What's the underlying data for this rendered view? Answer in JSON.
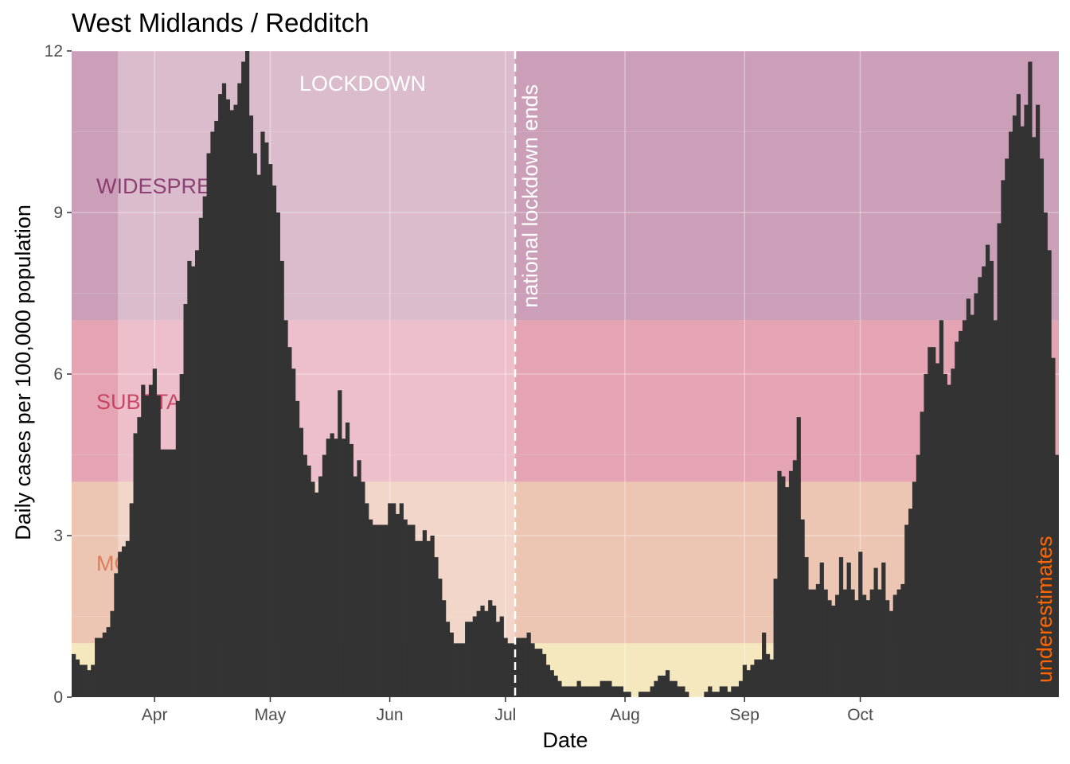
{
  "chart_data": {
    "type": "bar",
    "title": "West Midlands / Redditch",
    "xlabel": "Date",
    "ylabel": "Daily cases per 100,000 population",
    "ylim": [
      0,
      12
    ],
    "y_ticks": [
      0,
      3,
      6,
      9,
      12
    ],
    "x_tick_labels": [
      "Apr",
      "May",
      "Jun",
      "Jul",
      "Aug",
      "Sep",
      "Oct"
    ],
    "x_tick_dates": [
      "2020-04-01",
      "2020-05-01",
      "2020-06-01",
      "2020-07-01",
      "2020-08-01",
      "2020-09-01",
      "2020-10-01"
    ],
    "start_date": "2020-03-11",
    "grid": true,
    "bands": [
      {
        "label": "WIDESPREAD",
        "from": 7,
        "to": 12,
        "color": "#a0507e"
      },
      {
        "label": "SUBSTANTIAL",
        "from": 4,
        "to": 7,
        "color": "#d05a74"
      },
      {
        "label": "MODERATE",
        "from": 1,
        "to": 4,
        "color": "#dc9575"
      },
      {
        "label": "",
        "from": 0,
        "to": 1,
        "color": "#ecd688"
      }
    ],
    "band_label_colors": [
      "#7a1f5c",
      "#c0294f",
      "#d86a40"
    ],
    "lockdown": {
      "label": "LOCKDOWN",
      "from": "2020-03-23",
      "to": "2020-07-04",
      "color": "#ffffff"
    },
    "annotations": [
      {
        "text": "national lockdown ends",
        "date": "2020-07-04",
        "color": "#ffffff"
      },
      {
        "text": "underestimates",
        "color": "#ff6600"
      }
    ],
    "bar_color": "#333333",
    "values": [
      0.8,
      0.7,
      0.6,
      0.6,
      0.5,
      0.6,
      1.1,
      1.1,
      1.2,
      1.3,
      1.6,
      2.3,
      2.7,
      2.8,
      2.9,
      3.6,
      4.9,
      5.2,
      5.8,
      5.6,
      5.8,
      6.1,
      5.6,
      4.6,
      4.6,
      4.6,
      4.6,
      5.5,
      6.0,
      7.3,
      8.1,
      8.0,
      8.3,
      8.9,
      9.3,
      10.1,
      10.5,
      10.7,
      11.2,
      11.4,
      11.1,
      10.9,
      11.0,
      11.4,
      11.8,
      12.1,
      10.8,
      10.1,
      9.7,
      10.5,
      10.3,
      9.9,
      9.5,
      9.0,
      8.1,
      7.0,
      6.5,
      6.1,
      5.5,
      5.0,
      4.5,
      4.3,
      4.0,
      3.8,
      4.1,
      4.5,
      4.8,
      4.9,
      4.8,
      5.7,
      4.8,
      5.1,
      4.7,
      4.1,
      4.4,
      4.0,
      3.6,
      3.3,
      3.2,
      3.2,
      3.2,
      3.2,
      3.6,
      3.6,
      3.4,
      3.6,
      3.3,
      3.2,
      3.2,
      2.9,
      2.9,
      3.1,
      2.9,
      3.0,
      2.6,
      2.2,
      1.8,
      1.4,
      1.2,
      1.0,
      1.0,
      1.0,
      1.4,
      1.4,
      1.5,
      1.6,
      1.7,
      1.6,
      1.8,
      1.7,
      1.4,
      1.5,
      1.1,
      1.0,
      1.0,
      1.1,
      1.1,
      1.1,
      1.2,
      1.0,
      0.9,
      0.9,
      0.8,
      0.6,
      0.5,
      0.4,
      0.3,
      0.2,
      0.2,
      0.2,
      0.2,
      0.3,
      0.2,
      0.2,
      0.2,
      0.2,
      0.2,
      0.3,
      0.3,
      0.3,
      0.2,
      0.2,
      0.2,
      0.1,
      0.1,
      0.0,
      0.0,
      0.1,
      0.1,
      0.1,
      0.2,
      0.3,
      0.4,
      0.4,
      0.5,
      0.3,
      0.3,
      0.2,
      0.2,
      0.1,
      0.0,
      0.0,
      0.0,
      0.0,
      0.1,
      0.2,
      0.1,
      0.1,
      0.2,
      0.2,
      0.1,
      0.2,
      0.2,
      0.3,
      0.6,
      0.5,
      0.6,
      0.7,
      0.7,
      1.2,
      0.8,
      0.7,
      2.2,
      4.2,
      4.1,
      3.9,
      4.2,
      4.4,
      5.2,
      3.3,
      2.6,
      2.0,
      2.0,
      2.1,
      2.5,
      2.0,
      1.8,
      1.7,
      1.9,
      2.6,
      2.0,
      2.5,
      2.0,
      1.8,
      2.7,
      1.9,
      1.8,
      2.0,
      2.4,
      2.0,
      2.5,
      1.8,
      1.6,
      1.9,
      2.0,
      2.1,
      3.2,
      3.5,
      4.0,
      4.5,
      5.3,
      6.0,
      6.5,
      6.5,
      6.2,
      7.0,
      6.0,
      5.8,
      6.1,
      6.6,
      6.8,
      7.0,
      7.4,
      7.1,
      7.5,
      7.8,
      8.0,
      8.4,
      8.1,
      7.0,
      8.8,
      9.6,
      10.0,
      10.5,
      10.8,
      11.2,
      10.6,
      11.0,
      11.8,
      10.4,
      11.0,
      10.0,
      9.0,
      8.3,
      6.3,
      4.5
    ]
  }
}
